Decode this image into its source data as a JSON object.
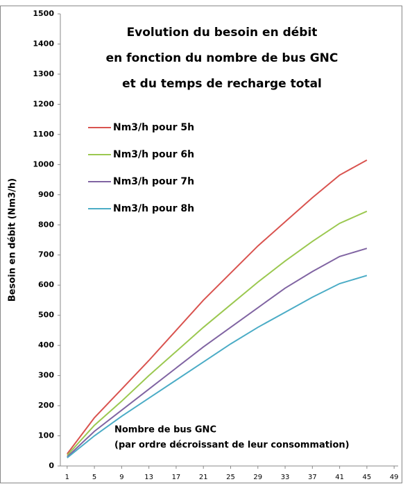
{
  "chart_data": {
    "type": "line",
    "title": [
      "Evolution du besoin en débit",
      "en fonction du nombre de bus GNC",
      "et du temps de recharge total"
    ],
    "y_label": "Besoin en débit  (Nm3/h)",
    "annotation": [
      "Nombre de bus GNC",
      "(par ordre décroissant de leur consommation)"
    ],
    "x": [
      1,
      5,
      9,
      13,
      17,
      21,
      25,
      29,
      33,
      37,
      41,
      45
    ],
    "series": [
      {
        "name": "Nm3/h pour 5h",
        "color": "#d9534f",
        "values": [
          40,
          160,
          255,
          350,
          450,
          550,
          640,
          730,
          810,
          890,
          965,
          1015
        ]
      },
      {
        "name": "Nm3/h pour 6h",
        "color": "#9bc850",
        "values": [
          35,
          135,
          215,
          300,
          380,
          460,
          535,
          610,
          680,
          745,
          805,
          845
        ]
      },
      {
        "name": "Nm3/h pour 7h",
        "color": "#8064a2",
        "values": [
          30,
          115,
          185,
          255,
          325,
          395,
          460,
          525,
          590,
          645,
          695,
          722
        ]
      },
      {
        "name": "Nm3/h pour 8h",
        "color": "#4bacc6",
        "values": [
          27,
          100,
          165,
          225,
          285,
          345,
          405,
          460,
          510,
          560,
          605,
          632
        ]
      }
    ],
    "xlim": [
      0,
      50
    ],
    "xticks": [
      1,
      5,
      9,
      13,
      17,
      21,
      25,
      29,
      33,
      37,
      41,
      45,
      49
    ],
    "ylim": [
      0,
      1500
    ],
    "yticks": [
      0,
      100,
      200,
      300,
      400,
      500,
      600,
      700,
      800,
      900,
      1000,
      1100,
      1200,
      1300,
      1400,
      1500
    ],
    "grid": false,
    "legend": "upper-left"
  }
}
